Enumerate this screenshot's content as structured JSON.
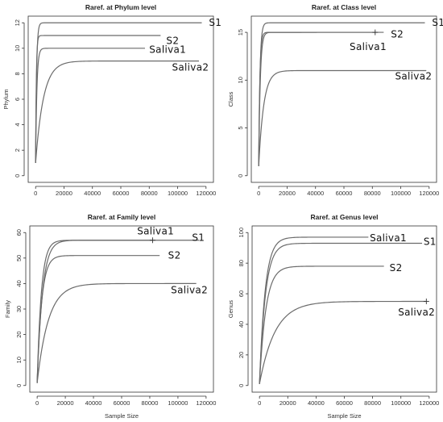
{
  "chart_data": [
    {
      "type": "line",
      "title": "Raref. at Phylum level",
      "xlabel": "",
      "ylabel": "Phylum",
      "xlim": [
        0,
        120000
      ],
      "ylim": [
        0,
        12
      ],
      "xticks": [
        "0",
        "20000",
        "40000",
        "60000",
        "80000",
        "100000",
        "120000"
      ],
      "xtick_values": [
        0,
        20000,
        40000,
        60000,
        80000,
        100000,
        120000
      ],
      "yticks": [
        "0",
        "2",
        "4",
        "6",
        "8",
        "10",
        "12"
      ],
      "ytick_values": [
        0,
        2,
        4,
        6,
        8,
        10,
        12
      ],
      "series": [
        {
          "name": "S1",
          "end_x": 117000,
          "plateau": 12,
          "k": 700,
          "start": 1,
          "label_x": 122000,
          "label_y": 12
        },
        {
          "name": "S2",
          "end_x": 88000,
          "plateau": 11,
          "k": 500,
          "start": 1,
          "label_x": 92000,
          "label_y": 10.6
        },
        {
          "name": "Saliva1",
          "end_x": 77000,
          "plateau": 10,
          "k": 900,
          "start": 1,
          "label_x": 80000,
          "label_y": 9.9
        },
        {
          "name": "Saliva2",
          "end_x": 115000,
          "plateau": 9,
          "k": 5500,
          "start": 1,
          "label_x": 96000,
          "label_y": 8.5
        }
      ],
      "markers": []
    },
    {
      "type": "line",
      "title": "Raref. at Class level",
      "xlabel": "",
      "ylabel": "Class",
      "xlim": [
        0,
        120000
      ],
      "ylim": [
        0,
        16
      ],
      "xticks": [
        "0",
        "20000",
        "40000",
        "60000",
        "80000",
        "100000",
        "120000"
      ],
      "xtick_values": [
        0,
        20000,
        40000,
        60000,
        80000,
        100000,
        120000
      ],
      "yticks": [
        "0",
        "5",
        "10",
        "15"
      ],
      "ytick_values": [
        0,
        5,
        10,
        15
      ],
      "series": [
        {
          "name": "S1",
          "end_x": 117000,
          "plateau": 16,
          "k": 900,
          "start": 1,
          "label_x": 122000,
          "label_y": 16
        },
        {
          "name": "S2",
          "end_x": 88000,
          "plateau": 15,
          "k": 800,
          "start": 1,
          "label_x": 93000,
          "label_y": 14.8
        },
        {
          "name": "Saliva1",
          "end_x": 82000,
          "plateau": 15,
          "k": 1100,
          "start": 1,
          "label_x": 64000,
          "label_y": 13.5
        },
        {
          "name": "Saliva2",
          "end_x": 118000,
          "plateau": 11,
          "k": 3500,
          "start": 1,
          "label_x": 96000,
          "label_y": 10.4
        }
      ],
      "markers": [
        {
          "symbol": "+",
          "x": 82000,
          "y": 15
        }
      ]
    },
    {
      "type": "line",
      "title": "Raref. at Family level",
      "xlabel": "Sample Size",
      "ylabel": "Family",
      "xlim": [
        0,
        120000
      ],
      "ylim": [
        0,
        60
      ],
      "xticks": [
        "0",
        "20000",
        "40000",
        "60000",
        "80000",
        "100000",
        "120000"
      ],
      "xtick_values": [
        0,
        20000,
        40000,
        60000,
        80000,
        100000,
        120000
      ],
      "yticks": [
        "0",
        "10",
        "20",
        "30",
        "40",
        "50",
        "60"
      ],
      "ytick_values": [
        0,
        10,
        20,
        30,
        40,
        50,
        60
      ],
      "series": [
        {
          "name": "S1",
          "end_x": 115000,
          "plateau": 57,
          "k": 3000,
          "start": 1,
          "label_x": 110000,
          "label_y": 58
        },
        {
          "name": "S2",
          "end_x": 87000,
          "plateau": 51,
          "k": 3200,
          "start": 1,
          "label_x": 93000,
          "label_y": 51
        },
        {
          "name": "Saliva1",
          "end_x": 82000,
          "plateau": 57,
          "k": 3800,
          "start": 1,
          "label_x": 71000,
          "label_y": 60.5
        },
        {
          "name": "Saliva2",
          "end_x": 113000,
          "plateau": 40,
          "k": 8000,
          "start": 1,
          "label_x": 95000,
          "label_y": 37.5
        }
      ],
      "markers": [
        {
          "symbol": "+",
          "x": 82000,
          "y": 57
        }
      ]
    },
    {
      "type": "line",
      "title": "Raref. at Genus level",
      "xlabel": "Sample Size",
      "ylabel": "Genus",
      "xlim": [
        0,
        120000
      ],
      "ylim": [
        0,
        100
      ],
      "xticks": [
        "0",
        "20000",
        "40000",
        "60000",
        "80000",
        "100000",
        "120000"
      ],
      "xtick_values": [
        0,
        20000,
        40000,
        60000,
        80000,
        100000,
        120000
      ],
      "yticks": [
        "0",
        "20",
        "40",
        "60",
        "80",
        "100"
      ],
      "ytick_values": [
        0,
        20,
        40,
        60,
        80,
        100
      ],
      "series": [
        {
          "name": "S1",
          "end_x": 115000,
          "plateau": 93,
          "k": 4200,
          "start": 1,
          "label_x": 116000,
          "label_y": 94
        },
        {
          "name": "S2",
          "end_x": 88000,
          "plateau": 78,
          "k": 4500,
          "start": 1,
          "label_x": 92000,
          "label_y": 77
        },
        {
          "name": "Saliva1",
          "end_x": 77000,
          "plateau": 97,
          "k": 4000,
          "start": 1,
          "label_x": 78000,
          "label_y": 96.5
        },
        {
          "name": "Saliva2",
          "end_x": 118000,
          "plateau": 55,
          "k": 11000,
          "start": 1,
          "label_x": 98000,
          "label_y": 48
        }
      ],
      "markers": [
        {
          "symbol": "+",
          "x": 118000,
          "y": 55
        }
      ]
    }
  ]
}
